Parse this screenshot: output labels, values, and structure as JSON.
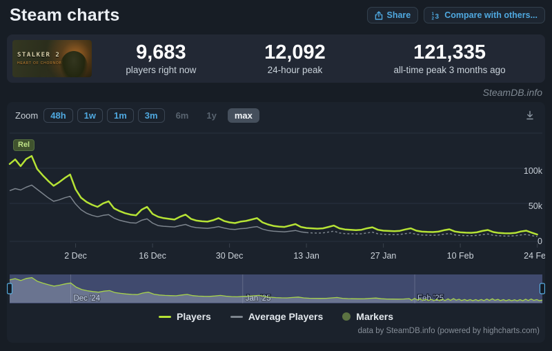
{
  "page": {
    "title": "Steam charts",
    "watermark": "SteamDB.info",
    "footer_credit": "data by SteamDB.info (powered by highcharts.com)"
  },
  "header": {
    "share_label": "Share",
    "compare_label": "Compare with others..."
  },
  "game_capsule": {
    "name": "STALKER 2",
    "subtitle": "HEART OF CHORNOBYL"
  },
  "stats": {
    "items": [
      {
        "value": "9,683",
        "label": "players right now"
      },
      {
        "value": "12,092",
        "label": "24-hour peak"
      },
      {
        "value": "121,335",
        "label": "all-time peak 3 months ago"
      }
    ]
  },
  "toolbar": {
    "zoom_label": "Zoom",
    "ranges": [
      {
        "label": "48h",
        "state": "enabled"
      },
      {
        "label": "1w",
        "state": "enabled"
      },
      {
        "label": "1m",
        "state": "enabled"
      },
      {
        "label": "3m",
        "state": "enabled"
      },
      {
        "label": "6m",
        "state": "disabled"
      },
      {
        "label": "1y",
        "state": "disabled"
      },
      {
        "label": "max",
        "state": "selected"
      }
    ],
    "download_icon": "download-arrow"
  },
  "colors": {
    "accent_blue": "#4fa8df",
    "players_green": "#b6e335",
    "average_gray": "#7d858e",
    "markers_olive": "#5c7342",
    "navigator_bg": "#404a6e",
    "grid": "#2a3140",
    "axis_label": "#c6cdd5"
  },
  "chart_data": {
    "type": "line",
    "title": "",
    "x_start_date": "20 Nov 2024",
    "x_unit": "day",
    "x_tick_labels": [
      "2 Dec",
      "16 Dec",
      "30 Dec",
      "13 Jan",
      "27 Jan",
      "10 Feb",
      "24 Feb"
    ],
    "x_tick_days": [
      12,
      26,
      40,
      54,
      68,
      82,
      96
    ],
    "y_tick_labels": [
      "0",
      "50k",
      "100k"
    ],
    "y_tick_values": [
      0,
      50000,
      100000
    ],
    "ylim": [
      0,
      150000
    ],
    "grid": true,
    "legend_position": "bottom",
    "release_flag": {
      "label": "Rel",
      "day": 0
    },
    "series": [
      {
        "name": "Players",
        "color": "#b6e335",
        "values": [
          110000,
          116500,
          107000,
          117000,
          121335,
          103000,
          94000,
          86000,
          79000,
          84000,
          90000,
          95000,
          74000,
          62000,
          56000,
          52000,
          49000,
          54000,
          57000,
          47000,
          43000,
          40000,
          38000,
          37000,
          45000,
          49000,
          39000,
          35000,
          33000,
          32000,
          31000,
          35000,
          38000,
          32000,
          29500,
          28500,
          28000,
          30000,
          33000,
          29000,
          27000,
          26000,
          28000,
          29000,
          31000,
          33000,
          27000,
          24000,
          22000,
          21000,
          20500,
          22500,
          24500,
          20500,
          19000,
          18500,
          18000,
          18500,
          20500,
          22500,
          18500,
          17000,
          16500,
          16000,
          16500,
          18500,
          20000,
          16500,
          15200,
          14800,
          14500,
          15000,
          17000,
          18500,
          15200,
          13800,
          13400,
          13200,
          13800,
          15800,
          17200,
          14000,
          12800,
          12400,
          12200,
          12800,
          14800,
          16200,
          13200,
          12000,
          11600,
          11400,
          12000,
          14000,
          15200,
          12400,
          9683
        ]
      },
      {
        "name": "Average Players",
        "color": "#7d858e",
        "dashed_from_day": 54,
        "values": [
          72000,
          75000,
          73000,
          77000,
          80000,
          74000,
          68000,
          62000,
          57000,
          59000,
          62000,
          64000,
          53000,
          45000,
          40000,
          37000,
          35000,
          37000,
          38000,
          33000,
          30000,
          28000,
          26500,
          26000,
          30000,
          32000,
          26000,
          22500,
          21500,
          21000,
          20500,
          22500,
          24000,
          21000,
          19500,
          19000,
          18500,
          19500,
          21000,
          19000,
          17500,
          17000,
          18000,
          18500,
          20000,
          21000,
          17500,
          15500,
          14500,
          14000,
          13500,
          14500,
          15500,
          13500,
          12500,
          12000,
          11800,
          12000,
          13200,
          14500,
          12000,
          11000,
          10800,
          10500,
          10800,
          12000,
          13000,
          10800,
          10000,
          9700,
          9500,
          9800,
          11000,
          12000,
          10000,
          9000,
          8800,
          8600,
          9000,
          10200,
          11200,
          9200,
          8400,
          8100,
          8000,
          8400,
          9600,
          10500,
          8600,
          7900,
          7600,
          7500,
          7900,
          9100,
          9900,
          8100,
          7000
        ]
      },
      {
        "name": "Markers",
        "color": "#5c7342",
        "type": "marker"
      }
    ],
    "navigator": {
      "month_labels": [
        {
          "text": "Dec '24",
          "day": 11
        },
        {
          "text": "Jan '25",
          "day": 42
        },
        {
          "text": "Feb '25",
          "day": 73
        }
      ]
    }
  },
  "legend": {
    "items": [
      {
        "label": "Players",
        "swatch": "line",
        "color": "#b6e335"
      },
      {
        "label": "Average Players",
        "swatch": "line",
        "color": "#7d858e"
      },
      {
        "label": "Markers",
        "swatch": "circle",
        "color": "#5c7342"
      }
    ]
  }
}
